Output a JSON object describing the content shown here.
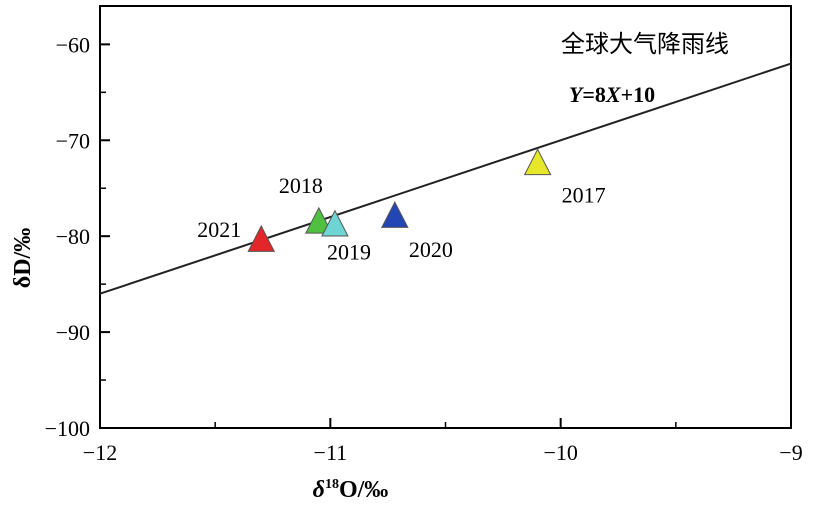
{
  "chart_data": {
    "type": "scatter",
    "title": "",
    "xlabel": "δ18O/‰",
    "xlabel_parts": {
      "delta": "δ",
      "superscript": "18",
      "rest": "O/‰"
    },
    "ylabel": "δD/‰",
    "xlim": [
      -12,
      -9
    ],
    "ylim": [
      -100,
      -56
    ],
    "xticks": [
      -12,
      -11,
      -10,
      -9
    ],
    "yticks": [
      -100,
      -90,
      -80,
      -70,
      -60
    ],
    "xtick_labels": [
      "−12",
      "−11",
      "−10",
      "−9"
    ],
    "ytick_labels": [
      "−100",
      "−90",
      "−80",
      "−70",
      "−60"
    ],
    "grid": false,
    "points": [
      {
        "label": "2017",
        "x": -10.1,
        "y": -72.5,
        "color": "#e6e62a"
      },
      {
        "label": "2018",
        "x": -11.05,
        "y": -78.6,
        "color": "#4fc03f"
      },
      {
        "label": "2019",
        "x": -10.98,
        "y": -78.9,
        "color": "#6fd4d4"
      },
      {
        "label": "2020",
        "x": -10.72,
        "y": -78.0,
        "color": "#2346b4"
      },
      {
        "label": "2021",
        "x": -11.3,
        "y": -80.5,
        "color": "#e3262a"
      }
    ],
    "line": {
      "name": "全球大气降雨线",
      "equation": "Y=8X+10",
      "slope": 8,
      "intercept": 10,
      "color": "#222222"
    }
  }
}
